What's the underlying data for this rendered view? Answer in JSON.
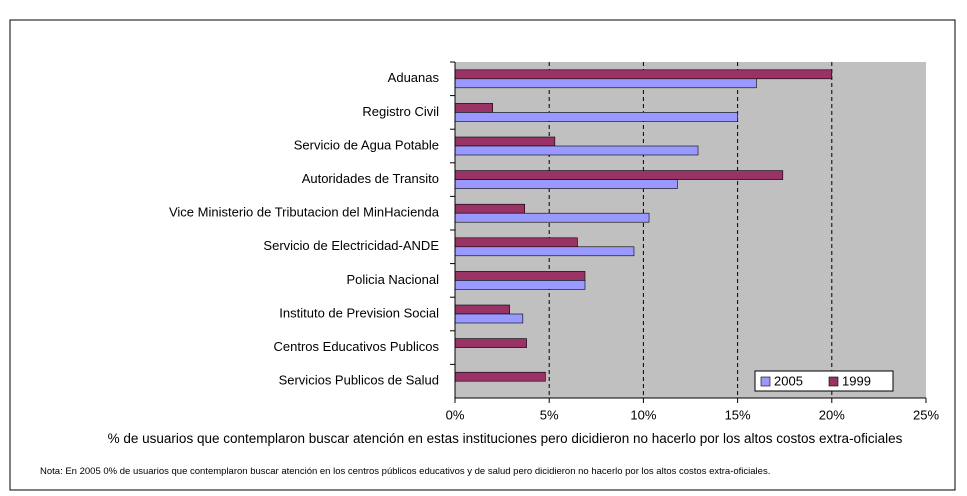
{
  "chart_data": {
    "type": "hbar",
    "categories": [
      "Aduanas",
      "Registro Civil",
      "Servicio de Agua Potable",
      "Autoridades de Transito",
      "Vice Ministerio de Tributacion del MinHacienda",
      "Servicio de Electricidad-ANDE",
      "Policia Nacional",
      "Instituto de Prevision Social",
      "Centros Educativos Publicos",
      "Servicios Publicos de Salud"
    ],
    "series": [
      {
        "name": "2005",
        "color": "#9999ff",
        "values": [
          16,
          15,
          12.9,
          11.8,
          10.3,
          9.5,
          6.9,
          3.6,
          0,
          0
        ]
      },
      {
        "name": "1999",
        "color": "#993366",
        "values": [
          20,
          2,
          5.3,
          17.4,
          3.7,
          6.5,
          6.9,
          2.9,
          3.8,
          4.8
        ]
      }
    ],
    "xlim": [
      0,
      25
    ],
    "xticks": [
      {
        "value": 0,
        "label": "0%"
      },
      {
        "value": 5,
        "label": "5%"
      },
      {
        "value": 10,
        "label": "10%"
      },
      {
        "value": 15,
        "label": "15%"
      },
      {
        "value": 20,
        "label": "20%"
      },
      {
        "value": 25,
        "label": "25%"
      }
    ],
    "grid": true,
    "legend": "lower right",
    "xlabel": "% de usuarios que contemplaron buscar atención en estas instituciones pero dicidieron no hacerlo por los altos costos extra-oficiales",
    "note": "Nota: En 2005 0%  de usuarios que contemplaron buscar atención en los centros públicos educativos y de salud pero dicidieron no hacerlo por los altos costos extra-oficiales."
  }
}
